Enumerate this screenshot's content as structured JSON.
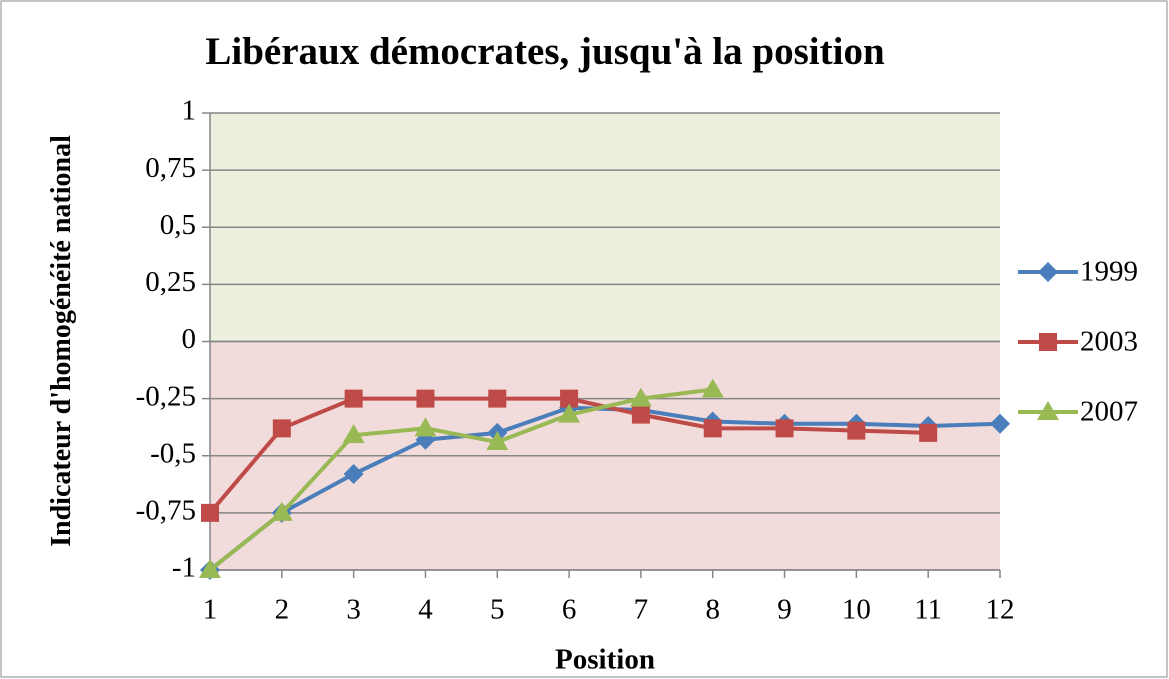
{
  "chart_data": {
    "type": "line",
    "title": "Libéraux démocrates, jusqu'à la position",
    "x_label": "Position",
    "y_label": "Indicateur d'homogénéité national",
    "x": [
      1,
      2,
      3,
      4,
      5,
      6,
      7,
      8,
      9,
      10,
      11,
      12
    ],
    "xlim": [
      1,
      12
    ],
    "xticks": [
      1,
      2,
      3,
      4,
      5,
      6,
      7,
      8,
      9,
      10,
      11,
      12
    ],
    "ylim": [
      -1,
      1
    ],
    "yticks": [
      -1,
      {
        "value": -0.75,
        "label": "-0,75"
      },
      {
        "value": -0.5,
        "label": "-0,5"
      },
      {
        "value": -0.25,
        "label": "-0,25"
      },
      0,
      {
        "value": 0.25,
        "label": "0,25"
      },
      {
        "value": 0.5,
        "label": "0,5"
      },
      {
        "value": 0.75,
        "label": "0,75"
      },
      1
    ],
    "grid": true,
    "legend": "right",
    "series": [
      {
        "name": "1999",
        "color": "#4a7ebb",
        "marker": "diamond",
        "values": [
          -1,
          -0.75,
          -0.58,
          -0.43,
          -0.4,
          -0.29,
          -0.3,
          -0.35,
          -0.36,
          -0.36,
          -0.37,
          -0.36
        ]
      },
      {
        "name": "2003",
        "color": "#be4b48",
        "marker": "square",
        "values": [
          -0.75,
          -0.38,
          -0.25,
          -0.25,
          -0.25,
          -0.25,
          -0.32,
          -0.38,
          -0.38,
          -0.39,
          -0.4,
          null
        ]
      },
      {
        "name": "2007",
        "color": "#98b954",
        "marker": "triangle",
        "values": [
          -1,
          -0.75,
          -0.41,
          -0.38,
          -0.44,
          -0.32,
          -0.25,
          -0.21,
          null,
          null,
          null,
          null
        ]
      }
    ]
  }
}
